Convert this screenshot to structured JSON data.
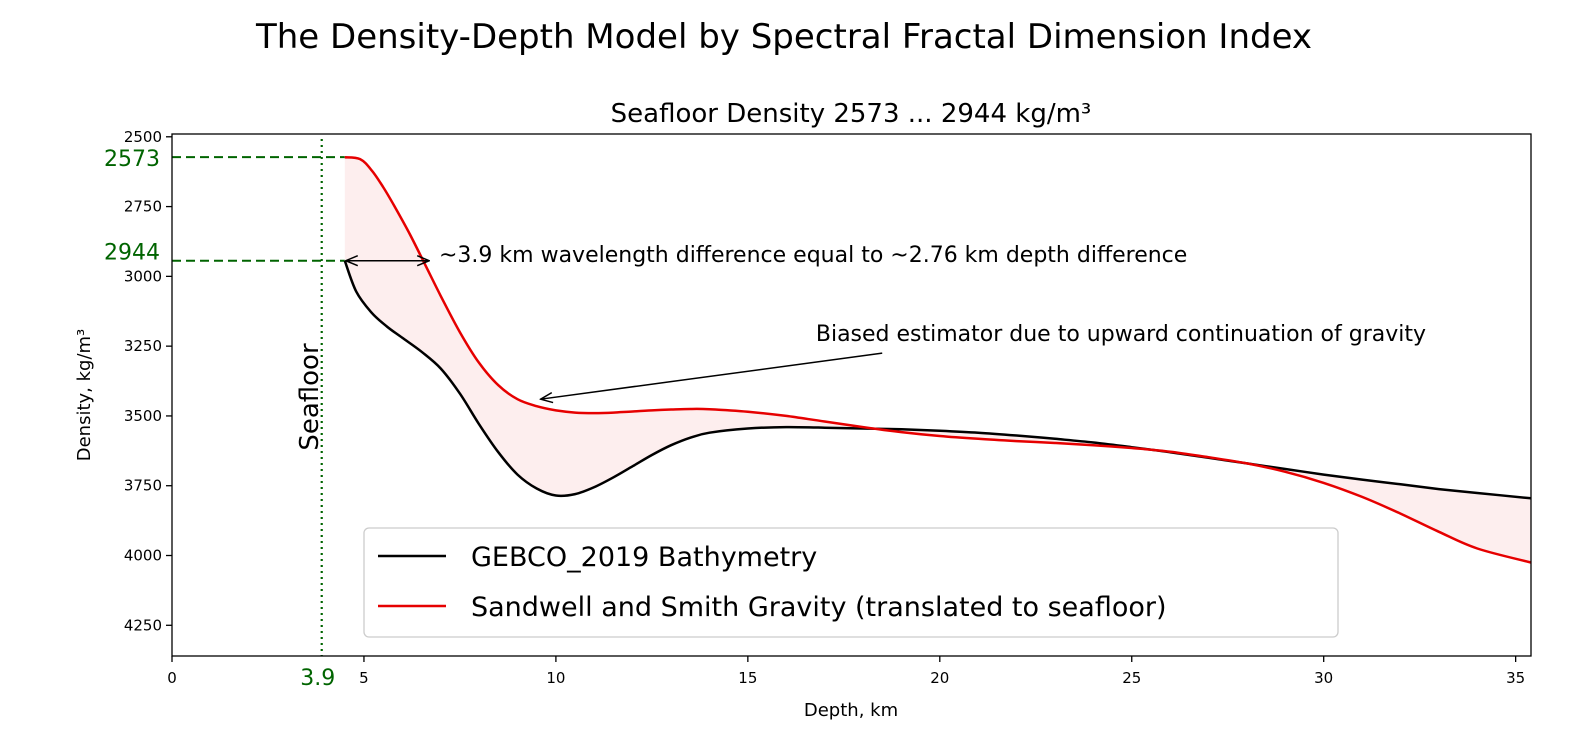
{
  "chart_data": {
    "type": "line",
    "suptitle": "The Density-Depth Model by Spectral Fractal Dimension Index",
    "title": "Seafloor Density 2573 ... 2944 kg/m³",
    "xlabel": "Depth, km",
    "ylabel": "Density, kg/m³",
    "xlim": [
      0,
      35.4
    ],
    "ylim": [
      4360,
      2490
    ],
    "y_inverted": true,
    "xticks": [
      0,
      5,
      10,
      15,
      20,
      25,
      30,
      35
    ],
    "yticks": [
      2500,
      2750,
      3000,
      3250,
      3500,
      3750,
      4000,
      4250
    ],
    "series": [
      {
        "name": "GEBCO_2019 Bathymetry",
        "color": "#000000",
        "x": [
          4.5,
          4.8,
          5.2,
          5.6,
          6.0,
          6.5,
          7.0,
          7.5,
          8.0,
          8.5,
          9.0,
          9.5,
          10.0,
          10.5,
          11.0,
          11.5,
          12.0,
          12.5,
          13.0,
          13.5,
          14.0,
          15.0,
          16.0,
          17.0,
          18.0,
          19.0,
          20.0,
          21.0,
          22.0,
          23.0,
          24.0,
          25.0,
          26.0,
          27.0,
          28.0,
          29.0,
          30.0,
          31.0,
          32.0,
          33.0,
          34.0,
          35.4
        ],
        "y": [
          2944,
          3055,
          3130,
          3180,
          3220,
          3270,
          3330,
          3420,
          3530,
          3630,
          3710,
          3760,
          3785,
          3780,
          3755,
          3720,
          3680,
          3640,
          3605,
          3578,
          3560,
          3545,
          3540,
          3542,
          3545,
          3548,
          3553,
          3560,
          3570,
          3582,
          3595,
          3612,
          3630,
          3650,
          3670,
          3690,
          3710,
          3728,
          3745,
          3762,
          3776,
          3795
        ]
      },
      {
        "name": "Sandwell and Smith Gravity (translated to seafloor)",
        "color": "#e60000",
        "x": [
          4.5,
          4.9,
          5.2,
          5.5,
          5.8,
          6.2,
          6.6,
          7.0,
          7.5,
          8.0,
          8.5,
          9.0,
          9.5,
          10.0,
          10.5,
          11.0,
          11.5,
          12.0,
          12.5,
          13.0,
          13.5,
          14.0,
          15.0,
          16.0,
          17.0,
          18.0,
          19.0,
          20.0,
          21.0,
          22.0,
          23.0,
          24.0,
          25.0,
          26.0,
          27.0,
          28.0,
          29.0,
          30.0,
          31.0,
          32.0,
          33.0,
          34.0,
          35.4
        ],
        "y": [
          2573,
          2580,
          2620,
          2680,
          2750,
          2850,
          2960,
          3070,
          3200,
          3310,
          3390,
          3440,
          3465,
          3480,
          3488,
          3490,
          3488,
          3484,
          3480,
          3477,
          3475,
          3476,
          3485,
          3500,
          3520,
          3540,
          3558,
          3572,
          3582,
          3590,
          3597,
          3605,
          3615,
          3628,
          3648,
          3670,
          3700,
          3740,
          3790,
          3850,
          3915,
          3975,
          4025
        ]
      }
    ],
    "fill_between": {
      "color": "#fdeeee",
      "between": [
        "GEBCO_2019 Bathymetry",
        "Sandwell and Smith Gravity (translated to seafloor)"
      ]
    },
    "reference_lines": [
      {
        "axis": "y",
        "value": 2573,
        "label": "2573",
        "style": "dashed",
        "color": "#006400",
        "x_to": 4.5
      },
      {
        "axis": "y",
        "value": 2944,
        "label": "2944",
        "style": "dashed",
        "color": "#006400",
        "x_to": 4.5
      },
      {
        "axis": "x",
        "value": 3.9,
        "label": "3.9",
        "style": "dotted",
        "color": "#006400",
        "text": "Seafloor"
      }
    ],
    "annotations": [
      {
        "text": "~3.9 km wavelength difference equal to ~2.76 km depth difference",
        "arrow_from": [
          4.5,
          2944
        ],
        "arrow_to": [
          6.7,
          2944
        ],
        "style": "double"
      },
      {
        "text": "Biased estimator due to upward continuation of gravity",
        "arrow_from": [
          18.5,
          3275
        ],
        "arrow_to": [
          9.6,
          3440
        ]
      }
    ],
    "legend": "lower-left"
  }
}
